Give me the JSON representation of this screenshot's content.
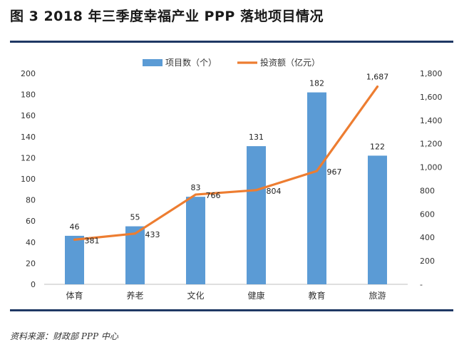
{
  "figure": {
    "title": "图 3 2018 年三季度幸福产业 PPP 落地项目情况",
    "source": "资料来源：财政部 PPP 中心"
  },
  "chart_data": {
    "type": "bar",
    "categories": [
      "体育",
      "养老",
      "文化",
      "健康",
      "教育",
      "旅游"
    ],
    "series": [
      {
        "name": "项目数（个）",
        "type": "bar",
        "axis": "left",
        "color": "#5b9bd5",
        "values": [
          46,
          55,
          83,
          131,
          182,
          122
        ],
        "labels": [
          "46",
          "55",
          "83",
          "131",
          "182",
          "122"
        ]
      },
      {
        "name": "投资额（亿元）",
        "type": "line",
        "axis": "right",
        "color": "#ed7d31",
        "values": [
          381,
          433,
          766,
          804,
          967,
          1687
        ],
        "labels": [
          "381",
          "433",
          "766",
          "804",
          "967",
          "1,687"
        ]
      }
    ],
    "y_left": {
      "min": 0,
      "max": 200,
      "ticks": [
        "0",
        "20",
        "40",
        "60",
        "80",
        "100",
        "120",
        "140",
        "160",
        "180",
        "200"
      ]
    },
    "y_right": {
      "min": 0,
      "max": 1800,
      "ticks": [
        "-",
        "200",
        "400",
        "600",
        "800",
        "1,000",
        "1,200",
        "1,400",
        "1,600",
        "1,800"
      ]
    },
    "legend_position": "top-center"
  }
}
